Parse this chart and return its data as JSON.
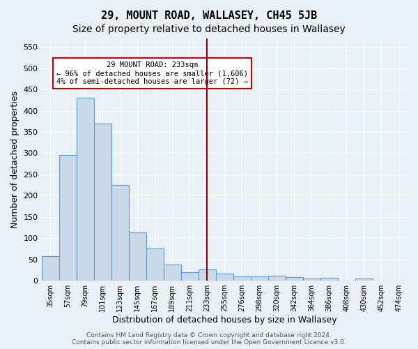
{
  "title": "29, MOUNT ROAD, WALLASEY, CH45 5JB",
  "subtitle": "Size of property relative to detached houses in Wallasey",
  "xlabel": "Distribution of detached houses by size in Wallasey",
  "ylabel": "Number of detached properties",
  "bar_values": [
    57,
    296,
    431,
    370,
    225,
    113,
    76,
    38,
    20,
    27,
    16,
    10,
    10,
    12,
    8,
    5,
    6,
    0,
    5,
    0,
    0
  ],
  "bin_width": 22,
  "categories": [
    "35sqm",
    "57sqm",
    "79sqm",
    "101sqm",
    "123sqm",
    "145sqm",
    "167sqm",
    "189sqm",
    "211sqm",
    "233sqm",
    "255sqm",
    "276sqm",
    "298sqm",
    "320sqm",
    "342sqm",
    "364sqm",
    "386sqm",
    "408sqm",
    "430sqm",
    "452sqm",
    "474sqm"
  ],
  "bar_color": "#c9d9e8",
  "bar_edge_color": "#5b9bd5",
  "vline_x": 244,
  "vline_color": "#8b0000",
  "annotation_text": "29 MOUNT ROAD: 233sqm\n← 96% of detached houses are smaller (1,606)\n4% of semi-detached houses are larger (72) →",
  "annotation_box_color": "#ffffff",
  "annotation_border_color": "#cc0000",
  "ylim": [
    0,
    570
  ],
  "yticks": [
    0,
    50,
    100,
    150,
    200,
    250,
    300,
    350,
    400,
    450,
    500,
    550
  ],
  "bg_color": "#eaf0f8",
  "grid_color": "#ffffff",
  "footer": "Contains HM Land Registry data © Crown copyright and database right 2024.\nContains public sector information licensed under the Open Government Licence v3.0.",
  "title_fontsize": 11,
  "subtitle_fontsize": 10,
  "xlabel_fontsize": 9,
  "ylabel_fontsize": 9
}
